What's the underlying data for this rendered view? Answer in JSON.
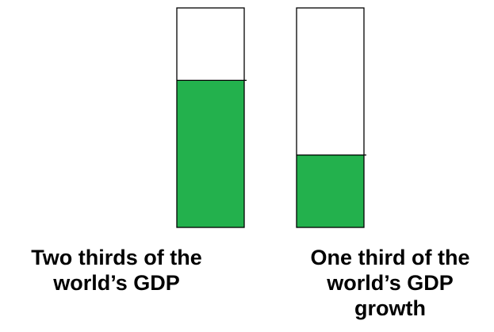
{
  "chart_data": {
    "type": "bar",
    "categories": [
      "Two thirds of the world’s GDP",
      "One third of the world’s GDP growth"
    ],
    "values": [
      0.67,
      0.33
    ],
    "ylim": [
      0,
      1
    ],
    "fill_color": "#23b14d",
    "outline_color": "#000000"
  },
  "captions": [
    {
      "line1": "Two thirds of the",
      "line2": "world’s GDP",
      "line3": ""
    },
    {
      "line1": "One third of the",
      "line2": "world’s GDP",
      "line3": "growth"
    }
  ]
}
